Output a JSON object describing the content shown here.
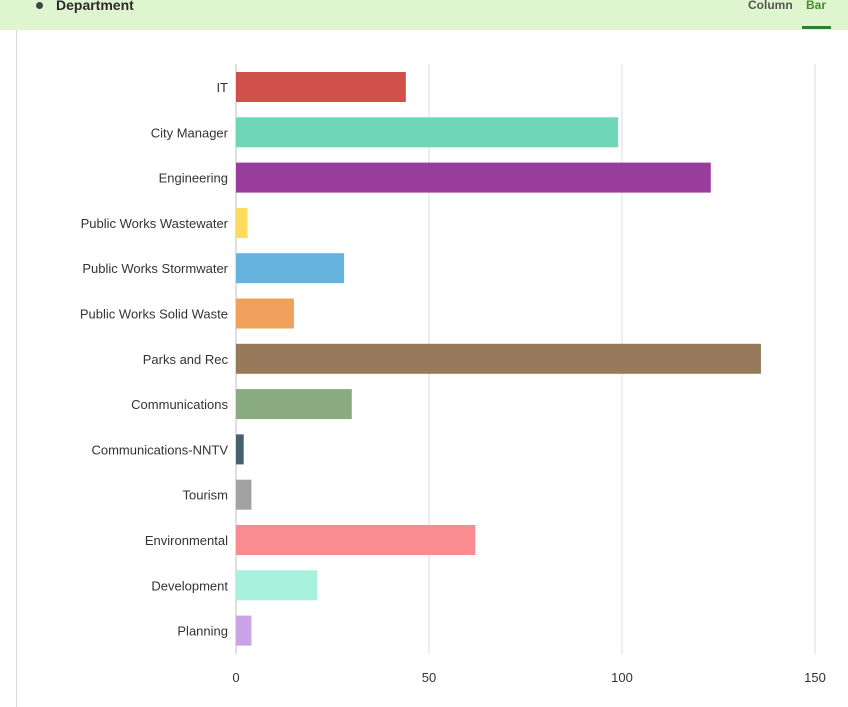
{
  "header": {
    "title": "Department",
    "tabs": [
      {
        "label": "Column"
      },
      {
        "label": "Bar"
      }
    ],
    "active_tab": "Bar"
  },
  "chart_data": {
    "type": "bar",
    "orientation": "horizontal",
    "title": "Department",
    "xlabel": "",
    "ylabel": "",
    "xlim": [
      0,
      150
    ],
    "xticks": [
      0,
      50,
      100,
      150
    ],
    "grid": true,
    "categories": [
      "IT",
      "City Manager",
      "Engineering",
      "Public Works Wastewater",
      "Public Works Stormwater",
      "Public Works Solid Waste",
      "Parks and Rec",
      "Communications",
      "Communications-NNTV",
      "Tourism",
      "Environmental",
      "Development",
      "Planning"
    ],
    "values": [
      44,
      99,
      123,
      3,
      28,
      15,
      136,
      30,
      2,
      4,
      62,
      21,
      4
    ],
    "colors": [
      "#d0504a",
      "#6fd6b8",
      "#993d9d",
      "#fddb5e",
      "#67b3e0",
      "#efa05a",
      "#977a5c",
      "#8aab82",
      "#45606e",
      "#a2a2a2",
      "#f98b91",
      "#a8f2dd",
      "#c9a2e8"
    ]
  }
}
